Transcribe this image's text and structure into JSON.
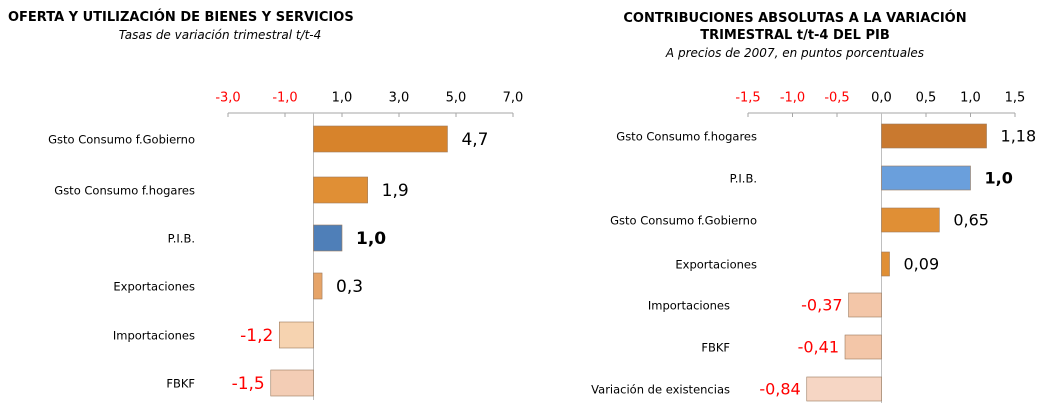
{
  "chart_data": [
    {
      "type": "bar",
      "orientation": "horizontal",
      "title": "OFERTA Y UTILIZACIÓN DE BIENES Y SERVICIOS",
      "subtitle": "Tasas de variación trimestral t/t-4",
      "categories": [
        "Gsto Consumo f.Gobierno",
        "Gsto Consumo f.hogares",
        "P.I.B.",
        "Exportaciones",
        "Importaciones",
        "FBKF"
      ],
      "values": [
        4.7,
        1.9,
        1.0,
        0.3,
        -1.2,
        -1.5
      ],
      "value_labels": [
        "4,7",
        "1,9",
        "1,0",
        "0,3",
        "-1,2",
        "-1,5"
      ],
      "colors": [
        "#d7832b",
        "#e08f35",
        "#4f7fb8",
        "#e6a468",
        "#f6d3b0",
        "#f3cdb5"
      ],
      "xlim": [
        -3,
        7
      ],
      "xticks": [
        {
          "value": -3,
          "label": "-3,0"
        },
        {
          "value": -1,
          "label": "-1,0"
        },
        {
          "value": 1,
          "label": "1,0"
        },
        {
          "value": 3,
          "label": "3,0"
        },
        {
          "value": 5,
          "label": "5,0"
        },
        {
          "value": 7,
          "label": "7,0"
        }
      ],
      "negative_color": "#ff0000"
    },
    {
      "type": "bar",
      "orientation": "horizontal",
      "title": "CONTRIBUCIONES ABSOLUTAS A LA VARIACIÓN TRIMESTRAL t/t-4 DEL PIB",
      "subtitle": "A precios de 2007, en puntos porcentuales",
      "categories": [
        "Gsto Consumo f.hogares",
        "P.I.B.",
        "Gsto Consumo f.Gobierno",
        "Exportaciones",
        "Importaciones",
        "FBKF",
        "Variación de existencias"
      ],
      "values": [
        1.18,
        1.0,
        0.65,
        0.09,
        -0.37,
        -0.41,
        -0.84
      ],
      "value_labels": [
        "1,18",
        "1,0",
        "0,65",
        "0,09",
        "-0,37",
        "-0,41",
        "-0,84"
      ],
      "colors": [
        "#c9792f",
        "#6a9fdc",
        "#e08f35",
        "#e08f35",
        "#f3c6a8",
        "#f3c6a8",
        "#f6d6c4"
      ],
      "xlim": [
        -1.5,
        1.5
      ],
      "xticks": [
        {
          "value": -1.5,
          "label": "-1,5"
        },
        {
          "value": -1,
          "label": "-1,0"
        },
        {
          "value": -0.5,
          "label": "-0,5"
        },
        {
          "value": 0,
          "label": "0,0"
        },
        {
          "value": 0.5,
          "label": "0,5"
        },
        {
          "value": 1,
          "label": "1,0"
        },
        {
          "value": 1.5,
          "label": "1,5"
        }
      ],
      "negative_color": "#ff0000"
    }
  ]
}
